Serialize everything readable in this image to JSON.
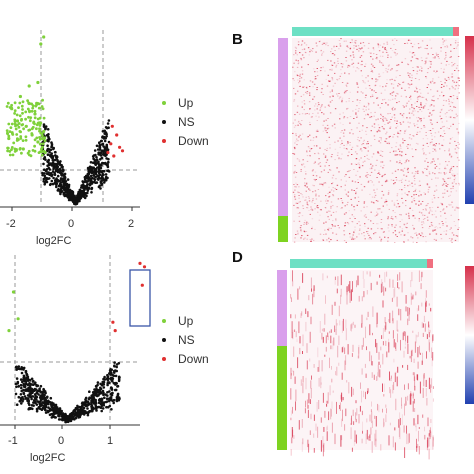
{
  "panels": {
    "b_label": "B",
    "d_label": "D"
  },
  "colors": {
    "up": "#7fd13b",
    "ns": "#111111",
    "down": "#e03030",
    "group_bar_top": "#6de0c4",
    "group_bar_small": "#f07080",
    "sample_bar_a": "#d9a0ec",
    "sample_bar_b": "#7ed321",
    "heat_high": "#d6304a",
    "heat_low": "#2040b0",
    "box": "#3a56a8"
  },
  "chart_data": [
    {
      "type": "scatter",
      "panel": "top-left volcano",
      "xlabel": "log2FC",
      "xticks": [
        "-2",
        "0",
        "2"
      ],
      "xlim": [
        -2.6,
        2.2
      ],
      "thresholds_x": [
        -1,
        1
      ],
      "legend_position": "right",
      "legend": [
        "Up",
        "NS",
        "Down"
      ],
      "series": [
        {
          "name": "Up",
          "points": [
            [
              -2.2,
              0.55
            ],
            [
              -2.0,
              0.48
            ],
            [
              -1.9,
              0.62
            ],
            [
              -1.7,
              0.45
            ],
            [
              -1.6,
              0.58
            ],
            [
              -1.5,
              0.4
            ],
            [
              -1.4,
              0.52
            ],
            [
              -1.3,
              0.36
            ],
            [
              -1.25,
              0.47
            ],
            [
              -1.15,
              0.33
            ],
            [
              -1.1,
              0.42
            ],
            [
              -2.3,
              0.38
            ],
            [
              -1.8,
              0.32
            ],
            [
              -1.2,
              0.92
            ],
            [
              -1.1,
              0.96
            ],
            [
              -1.3,
              0.7
            ],
            [
              -1.6,
              0.68
            ],
            [
              -1.05,
              0.3
            ]
          ]
        },
        {
          "name": "Down",
          "points": [
            [
              1.1,
              0.3
            ],
            [
              1.2,
              0.35
            ],
            [
              1.3,
              0.28
            ],
            [
              1.4,
              0.4
            ],
            [
              1.5,
              0.33
            ],
            [
              1.25,
              0.45
            ],
            [
              1.6,
              0.31
            ]
          ]
        }
      ]
    },
    {
      "type": "heatmap",
      "panel": "B",
      "legend_position": "right"
    },
    {
      "type": "scatter",
      "panel": "bottom-left volcano",
      "xlabel": "log2FC",
      "xticks": [
        "-1",
        "0",
        "1"
      ],
      "xlim": [
        -1.5,
        1.6
      ],
      "thresholds_x": [
        -1,
        1
      ],
      "legend_position": "right",
      "legend": [
        "Up",
        "NS",
        "Down"
      ],
      "series": [
        {
          "name": "Up",
          "points": [
            [
              -1.2,
              0.78
            ],
            [
              -1.1,
              0.62
            ],
            [
              -1.3,
              0.55
            ]
          ]
        },
        {
          "name": "Down",
          "points": [
            [
              1.0,
              0.6
            ],
            [
              1.05,
              0.55
            ],
            [
              1.6,
              0.95
            ],
            [
              1.7,
              0.93
            ],
            [
              1.65,
              0.82
            ]
          ]
        }
      ]
    },
    {
      "type": "heatmap",
      "panel": "D",
      "legend_position": "right"
    }
  ],
  "legend_top": {
    "up": "Up",
    "ns": "NS",
    "down": "Down"
  },
  "legend_bottom": {
    "up": "Up",
    "ns": "NS",
    "down": "Down"
  },
  "top_plot": {
    "xlabel": "log2FC",
    "ticks": [
      "-2",
      "0",
      "2"
    ]
  },
  "bottom_plot": {
    "xlabel": "log2FC",
    "ticks": [
      "-1",
      "0",
      "1"
    ]
  }
}
